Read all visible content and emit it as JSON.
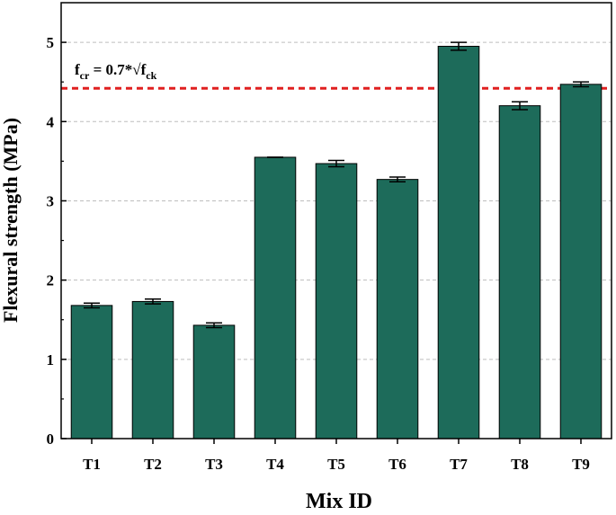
{
  "chart_data": {
    "type": "bar",
    "xlabel": "Mix ID",
    "ylabel": "Flexural strength (MPa)",
    "categories": [
      "T1",
      "T2",
      "T3",
      "T4",
      "T5",
      "T6",
      "T7",
      "T8",
      "T9"
    ],
    "values": [
      1.68,
      1.73,
      1.43,
      3.55,
      3.47,
      3.27,
      4.95,
      4.2,
      4.47
    ],
    "errors": [
      0.03,
      0.03,
      0.03,
      0.0,
      0.04,
      0.03,
      0.05,
      0.05,
      0.03
    ],
    "ylim": [
      0,
      5.5
    ],
    "yticks": [
      0,
      1,
      2,
      3,
      4,
      5
    ],
    "grid": true,
    "bar_color": "#1d6b5a",
    "reference_line": {
      "value": 4.42,
      "color": "#e02020",
      "label_main": "f",
      "label_sub1": "cr",
      "label_mid": " = 0.7*√f",
      "label_sub2": "ck"
    }
  }
}
